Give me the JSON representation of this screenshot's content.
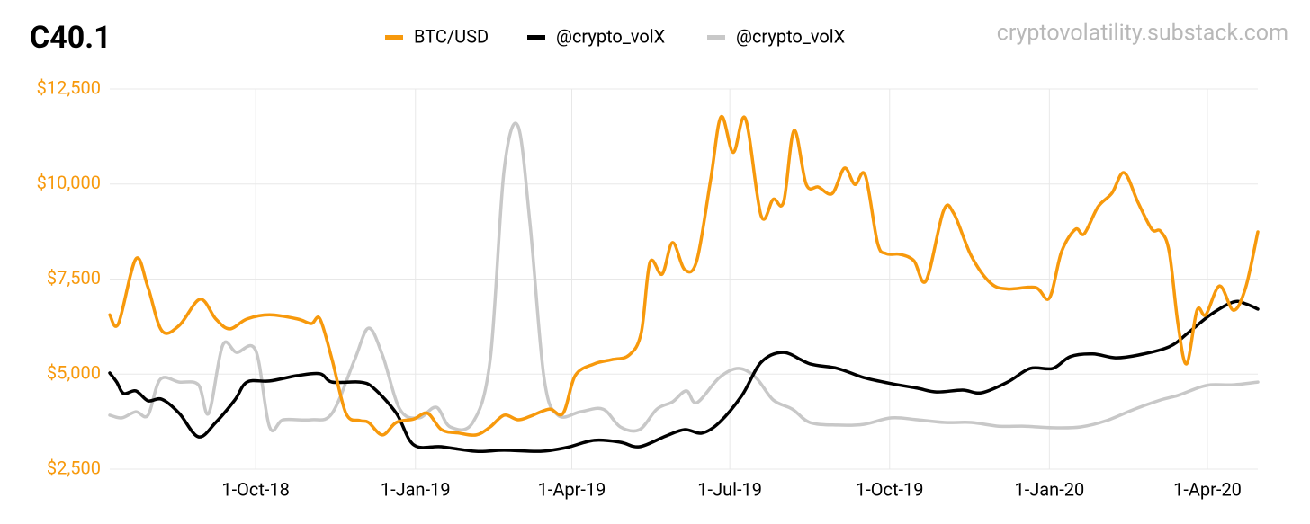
{
  "chart_data": {
    "type": "line",
    "title": "C40.1",
    "source": "cryptovolatility.substack.com",
    "xlim": [
      "2018-07-09",
      "2020-04-30"
    ],
    "xticks": [
      {
        "value": "2018-10-01",
        "label": "1-Oct-18"
      },
      {
        "value": "2019-01-01",
        "label": "1-Jan-19"
      },
      {
        "value": "2019-04-01",
        "label": "1-Apr-19"
      },
      {
        "value": "2019-07-01",
        "label": "1-Jul-19"
      },
      {
        "value": "2019-10-01",
        "label": "1-Oct-19"
      },
      {
        "value": "2020-01-01",
        "label": "1-Jan-20"
      },
      {
        "value": "2020-04-01",
        "label": "1-Apr-20"
      }
    ],
    "ylim": [
      2500,
      12500
    ],
    "yticks": [
      {
        "value": 2500,
        "label": "$2,500"
      },
      {
        "value": 5000,
        "label": "$5,000"
      },
      {
        "value": 7500,
        "label": "$7,500"
      },
      {
        "value": 10000,
        "label": "$10,000"
      },
      {
        "value": 12500,
        "label": "$12,500"
      }
    ],
    "grid": true,
    "legend": "top",
    "series": [
      {
        "name": "BTC/USD",
        "color": "#f7990c",
        "x": [
          "2018-07-09",
          "2018-07-14",
          "2018-07-24",
          "2018-07-31",
          "2018-08-08",
          "2018-08-18",
          "2018-08-30",
          "2018-09-08",
          "2018-09-16",
          "2018-09-26",
          "2018-10-09",
          "2018-10-25",
          "2018-11-02",
          "2018-11-07",
          "2018-11-14",
          "2018-11-22",
          "2018-11-30",
          "2018-12-05",
          "2018-12-13",
          "2018-12-21",
          "2018-12-31",
          "2019-01-08",
          "2019-01-16",
          "2019-01-26",
          "2019-02-05",
          "2019-02-13",
          "2019-02-21",
          "2019-03-01",
          "2019-03-08",
          "2019-03-19",
          "2019-03-27",
          "2019-04-03",
          "2019-04-14",
          "2019-04-24",
          "2019-05-04",
          "2019-05-11",
          "2019-05-16",
          "2019-05-23",
          "2019-05-29",
          "2019-06-05",
          "2019-06-12",
          "2019-06-20",
          "2019-06-26",
          "2019-07-03",
          "2019-07-10",
          "2019-07-19",
          "2019-07-26",
          "2019-08-01",
          "2019-08-07",
          "2019-08-14",
          "2019-08-21",
          "2019-08-29",
          "2019-09-05",
          "2019-09-11",
          "2019-09-17",
          "2019-09-24",
          "2019-09-29",
          "2019-10-07",
          "2019-10-15",
          "2019-10-22",
          "2019-11-01",
          "2019-11-07",
          "2019-11-17",
          "2019-11-28",
          "2019-12-08",
          "2019-12-24",
          "2020-01-01",
          "2020-01-08",
          "2020-01-16",
          "2020-01-21",
          "2020-01-29",
          "2020-02-06",
          "2020-02-13",
          "2020-02-21",
          "2020-02-29",
          "2020-03-05",
          "2020-03-10",
          "2020-03-15",
          "2020-03-20",
          "2020-03-26",
          "2020-03-31",
          "2020-04-08",
          "2020-04-16",
          "2020-04-23",
          "2020-04-30"
        ],
        "values": [
          6560,
          6330,
          8030,
          7280,
          6140,
          6280,
          6970,
          6450,
          6190,
          6450,
          6560,
          6450,
          6330,
          6450,
          5380,
          3970,
          3780,
          3730,
          3400,
          3730,
          3820,
          3970,
          3540,
          3450,
          3400,
          3610,
          3920,
          3800,
          3890,
          4080,
          3970,
          4960,
          5270,
          5380,
          5500,
          6090,
          7940,
          7630,
          8460,
          7750,
          7990,
          10120,
          11770,
          10830,
          11720,
          9170,
          9600,
          9530,
          11410,
          9990,
          9920,
          9750,
          10420,
          9990,
          10230,
          8460,
          8170,
          8150,
          7980,
          7460,
          9290,
          9220,
          8110,
          7400,
          7240,
          7280,
          7000,
          8220,
          8810,
          8690,
          9400,
          9760,
          10300,
          9520,
          8810,
          8760,
          8220,
          6330,
          5270,
          6680,
          6560,
          7320,
          6680,
          7280,
          8740
        ]
      },
      {
        "name": "@crypto_volX",
        "color": "#000000",
        "x": [
          "2018-07-09",
          "2018-07-13",
          "2018-07-17",
          "2018-07-24",
          "2018-07-31",
          "2018-08-08",
          "2018-08-18",
          "2018-08-29",
          "2018-09-08",
          "2018-09-19",
          "2018-09-26",
          "2018-10-09",
          "2018-10-25",
          "2018-11-07",
          "2018-11-14",
          "2018-11-30",
          "2018-12-08",
          "2018-12-21",
          "2018-12-31",
          "2019-01-16",
          "2019-02-05",
          "2019-02-21",
          "2019-03-14",
          "2019-03-29",
          "2019-04-14",
          "2019-04-29",
          "2019-05-10",
          "2019-05-25",
          "2019-06-05",
          "2019-06-15",
          "2019-06-25",
          "2019-07-08",
          "2019-07-19",
          "2019-08-01",
          "2019-08-16",
          "2019-09-01",
          "2019-09-16",
          "2019-10-02",
          "2019-10-17",
          "2019-10-28",
          "2019-11-12",
          "2019-11-23",
          "2019-12-08",
          "2019-12-21",
          "2020-01-03",
          "2020-01-13",
          "2020-01-26",
          "2020-02-08",
          "2020-02-21",
          "2020-03-10",
          "2020-03-21",
          "2020-04-03",
          "2020-04-16",
          "2020-04-23",
          "2020-04-30"
        ],
        "values": [
          5030,
          4790,
          4490,
          4560,
          4300,
          4340,
          3970,
          3350,
          3730,
          4320,
          4790,
          4820,
          4960,
          5010,
          4790,
          4790,
          4630,
          3970,
          3140,
          3090,
          2970,
          3000,
          2970,
          3070,
          3260,
          3210,
          3090,
          3370,
          3540,
          3450,
          3730,
          4440,
          5310,
          5570,
          5270,
          5150,
          4910,
          4750,
          4630,
          4530,
          4580,
          4510,
          4790,
          5150,
          5150,
          5460,
          5530,
          5430,
          5500,
          5720,
          6090,
          6570,
          6900,
          6850,
          6710
        ]
      },
      {
        "name": "@crypto_volX",
        "color": "#c8c8c8",
        "x": [
          "2018-07-09",
          "2018-07-16",
          "2018-07-24",
          "2018-07-31",
          "2018-08-07",
          "2018-08-18",
          "2018-08-29",
          "2018-09-04",
          "2018-09-12",
          "2018-09-20",
          "2018-10-01",
          "2018-10-09",
          "2018-10-17",
          "2018-11-02",
          "2018-11-14",
          "2018-11-27",
          "2018-12-05",
          "2018-12-13",
          "2018-12-23",
          "2019-01-03",
          "2019-01-13",
          "2019-01-21",
          "2019-02-03",
          "2019-02-13",
          "2019-02-21",
          "2019-03-01",
          "2019-03-08",
          "2019-03-16",
          "2019-03-24",
          "2019-04-06",
          "2019-04-19",
          "2019-04-29",
          "2019-05-10",
          "2019-05-20",
          "2019-05-29",
          "2019-06-06",
          "2019-06-12",
          "2019-06-25",
          "2019-07-06",
          "2019-07-16",
          "2019-07-26",
          "2019-08-06",
          "2019-08-16",
          "2019-09-01",
          "2019-09-16",
          "2019-10-02",
          "2019-10-17",
          "2019-11-02",
          "2019-11-17",
          "2019-12-03",
          "2019-12-18",
          "2020-01-03",
          "2020-01-19",
          "2020-02-03",
          "2020-02-19",
          "2020-03-05",
          "2020-03-15",
          "2020-03-26",
          "2020-04-03",
          "2020-04-16",
          "2020-04-30"
        ],
        "values": [
          3920,
          3850,
          4010,
          3920,
          4860,
          4790,
          4720,
          3970,
          5760,
          5570,
          5620,
          3610,
          3800,
          3800,
          3970,
          5380,
          6210,
          5500,
          4080,
          3850,
          4130,
          3610,
          3730,
          5380,
          10350,
          11530,
          8930,
          4910,
          3920,
          4010,
          4080,
          3610,
          3540,
          4080,
          4270,
          4560,
          4250,
          4910,
          5150,
          4910,
          4320,
          4080,
          3730,
          3660,
          3680,
          3850,
          3800,
          3730,
          3730,
          3630,
          3630,
          3590,
          3610,
          3780,
          4080,
          4320,
          4440,
          4630,
          4720,
          4720,
          4790
        ]
      }
    ]
  }
}
